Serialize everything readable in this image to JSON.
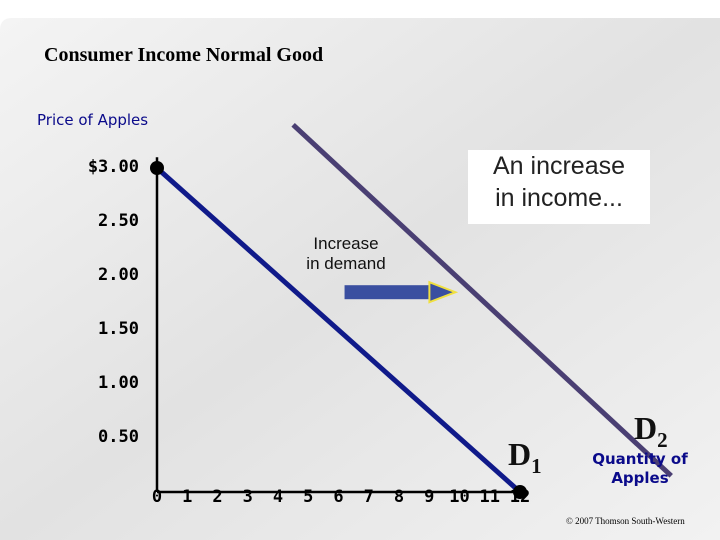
{
  "slide": {
    "title": "Consumer Income Normal Good",
    "copyright": "© 2007 Thomson South-Western",
    "colors": {
      "background_gradient": "#e4e4e4",
      "axis": "#000000",
      "d1": "#101a8a",
      "d2": "#4a3f73",
      "arrow": "#3a4fa0",
      "arrow_head": "#f0e040",
      "point": "#000000"
    }
  },
  "chart_data": {
    "type": "line",
    "ylabel": "Price of Apples",
    "xlabel": "Quantity of Apples",
    "y_ticks": [
      "$3.00",
      "2.50",
      "2.00",
      "1.50",
      "1.00",
      "0.50"
    ],
    "y_tick_values": [
      3.0,
      2.5,
      2.0,
      1.5,
      1.0,
      0.5
    ],
    "x_ticks": [
      "0",
      "1",
      "2",
      "3",
      "4",
      "5",
      "6",
      "7",
      "8",
      "9",
      "10",
      "11",
      "12"
    ],
    "x_tick_values": [
      0,
      1,
      2,
      3,
      4,
      5,
      6,
      7,
      8,
      9,
      10,
      11,
      12
    ],
    "xlim": [
      0,
      12
    ],
    "ylim": [
      0,
      3
    ],
    "series": [
      {
        "name": "D1",
        "x": [
          0,
          12
        ],
        "y": [
          3.0,
          0.0
        ]
      },
      {
        "name": "D2",
        "x": [
          4.5,
          17
        ],
        "y": [
          3.4,
          0.15
        ]
      }
    ],
    "points": [
      {
        "x": 0,
        "y": 3.0
      },
      {
        "x": 12,
        "y": 0.0
      }
    ],
    "annotations": {
      "callout": [
        "An increase",
        "in income..."
      ],
      "shift_label": [
        "Increase",
        "in demand"
      ],
      "shift_arrow": {
        "from_x": 6.2,
        "to_x": 9.6,
        "y": 1.85
      }
    },
    "curve_labels": {
      "d1": "D",
      "d1_sub": "1",
      "d2": "D",
      "d2_sub": "2"
    },
    "quantity_label": [
      "Quantity of",
      "Apples"
    ]
  }
}
